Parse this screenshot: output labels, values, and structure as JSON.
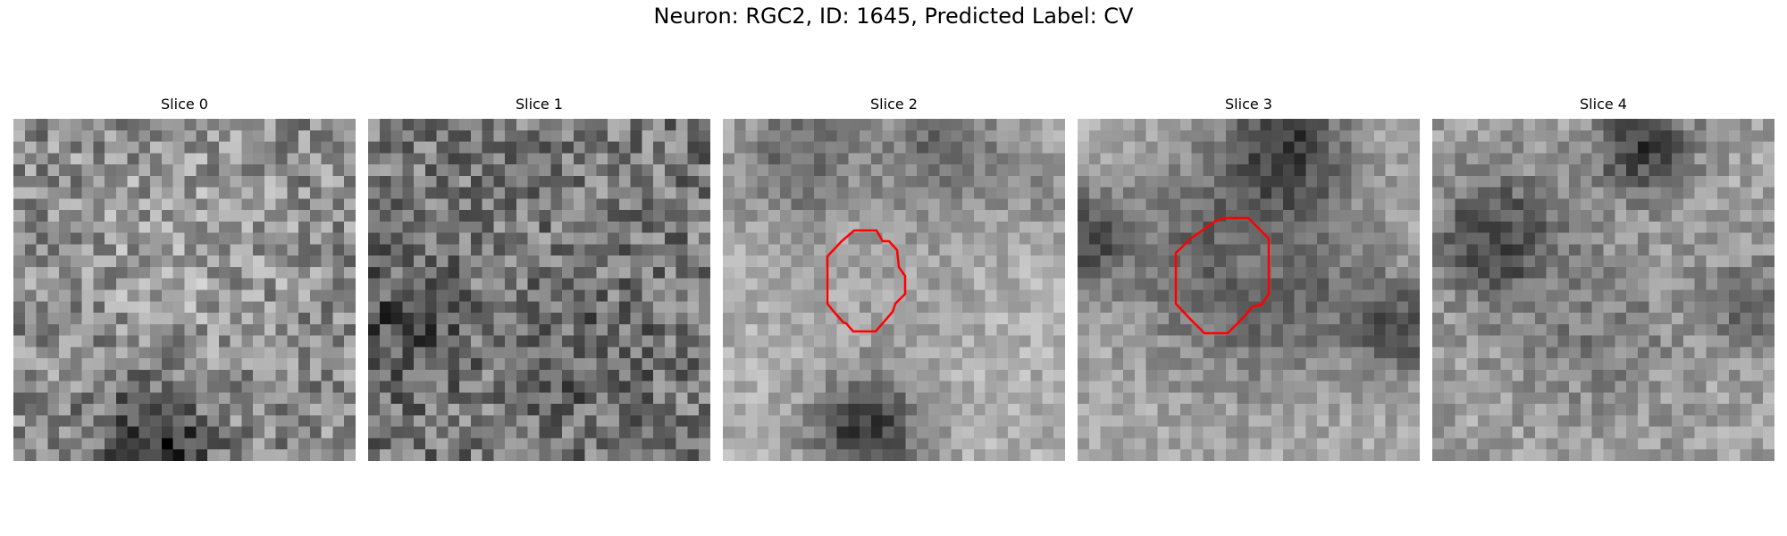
{
  "figure": {
    "title": "Neuron: RGC2, ID: 1645, Predicted Label: CV"
  },
  "panels": [
    {
      "title": "Slice 0",
      "has_contour": false
    },
    {
      "title": "Slice 1",
      "has_contour": false
    },
    {
      "title": "Slice 2",
      "has_contour": true
    },
    {
      "title": "Slice 3",
      "has_contour": true
    },
    {
      "title": "Slice 4",
      "has_contour": false
    }
  ],
  "colors": {
    "contour": "#ff0000",
    "background": "#ffffff"
  },
  "image_style": "grayscale pixelated microscopy patch"
}
